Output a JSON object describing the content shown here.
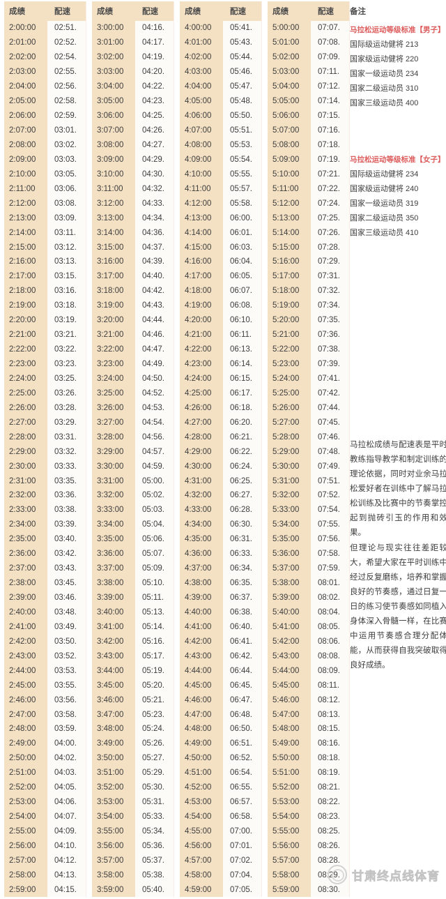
{
  "table": {
    "score_header": "成绩",
    "pace_header": "配速",
    "notes_header": "备注",
    "columns": [
      [
        [
          "2:00:00",
          "02:51."
        ],
        [
          "2:01:00",
          "02:52."
        ],
        [
          "2:02:00",
          "02:54."
        ],
        [
          "2:03:00",
          "02:55."
        ],
        [
          "2:04:00",
          "02:56."
        ],
        [
          "2:05:00",
          "02:58."
        ],
        [
          "2:06:00",
          "02:59."
        ],
        [
          "2:07:00",
          "03:01."
        ],
        [
          "2:08:00",
          "03:02."
        ],
        [
          "2:09:00",
          "03:03."
        ],
        [
          "2:10:00",
          "03:05."
        ],
        [
          "2:11:00",
          "03:06."
        ],
        [
          "2:12:00",
          "03:08."
        ],
        [
          "2:13:00",
          "03:09."
        ],
        [
          "2:14:00",
          "03:11."
        ],
        [
          "2:15:00",
          "03:12."
        ],
        [
          "2:16:00",
          "03:13."
        ],
        [
          "2:17:00",
          "03:15."
        ],
        [
          "2:18:00",
          "03:16."
        ],
        [
          "2:19:00",
          "03:18."
        ],
        [
          "2:20:00",
          "03:19."
        ],
        [
          "2:21:00",
          "03:21."
        ],
        [
          "2:22:00",
          "03:22."
        ],
        [
          "2:23:00",
          "03:23."
        ],
        [
          "2:24:00",
          "03:25."
        ],
        [
          "2:25:00",
          "03:26."
        ],
        [
          "2:26:00",
          "03:28."
        ],
        [
          "2:27:00",
          "03:29."
        ],
        [
          "2:28:00",
          "03:31."
        ],
        [
          "2:29:00",
          "03:32."
        ],
        [
          "2:30:00",
          "03:33."
        ],
        [
          "2:31:00",
          "03:35."
        ],
        [
          "2:32:00",
          "03:36."
        ],
        [
          "2:33:00",
          "03:38."
        ],
        [
          "2:34:00",
          "03:39."
        ],
        [
          "2:35:00",
          "03:40."
        ],
        [
          "2:36:00",
          "03:42."
        ],
        [
          "2:37:00",
          "03:43."
        ],
        [
          "2:38:00",
          "03:45."
        ],
        [
          "2:39:00",
          "03:46."
        ],
        [
          "2:40:00",
          "03:48."
        ],
        [
          "2:41:00",
          "03:49."
        ],
        [
          "2:42:00",
          "03:50."
        ],
        [
          "2:43:00",
          "03:52."
        ],
        [
          "2:44:00",
          "03:53."
        ],
        [
          "2:45:00",
          "03:55."
        ],
        [
          "2:46:00",
          "03:56."
        ],
        [
          "2:47:00",
          "03:58."
        ],
        [
          "2:48:00",
          "03:59."
        ],
        [
          "2:49:00",
          "04:00."
        ],
        [
          "2:50:00",
          "04:02."
        ],
        [
          "2:51:00",
          "04:03."
        ],
        [
          "2:52:00",
          "04:05."
        ],
        [
          "2:53:00",
          "04:06."
        ],
        [
          "2:54:00",
          "04:07."
        ],
        [
          "2:55:00",
          "04:09."
        ],
        [
          "2:56:00",
          "04:10."
        ],
        [
          "2:57:00",
          "04:12."
        ],
        [
          "2:58:00",
          "04:13."
        ],
        [
          "2:59:00",
          "04:15."
        ]
      ],
      [
        [
          "3:00:00",
          "04:16."
        ],
        [
          "3:01:00",
          "04:17."
        ],
        [
          "3:02:00",
          "04:19."
        ],
        [
          "3:03:00",
          "04:20."
        ],
        [
          "3:04:00",
          "04:22."
        ],
        [
          "3:05:00",
          "04:23."
        ],
        [
          "3:06:00",
          "04:25."
        ],
        [
          "3:07:00",
          "04:26."
        ],
        [
          "3:08:00",
          "04:27."
        ],
        [
          "3:09:00",
          "04:29."
        ],
        [
          "3:10:00",
          "04:30."
        ],
        [
          "3:11:00",
          "04:32."
        ],
        [
          "3:12:00",
          "04:33."
        ],
        [
          "3:13:00",
          "04:34."
        ],
        [
          "3:14:00",
          "04:36."
        ],
        [
          "3:15:00",
          "04:37."
        ],
        [
          "3:16:00",
          "04:39."
        ],
        [
          "3:17:00",
          "04:40."
        ],
        [
          "3:18:00",
          "04:42."
        ],
        [
          "3:19:00",
          "04:43."
        ],
        [
          "3:20:00",
          "04:44."
        ],
        [
          "3:21:00",
          "04:46."
        ],
        [
          "3:22:00",
          "04:47."
        ],
        [
          "3:23:00",
          "04:49."
        ],
        [
          "3:24:00",
          "04:50."
        ],
        [
          "3:25:00",
          "04:52."
        ],
        [
          "3:26:00",
          "04:53."
        ],
        [
          "3:27:00",
          "04:54."
        ],
        [
          "3:28:00",
          "04:56."
        ],
        [
          "3:29:00",
          "04:57."
        ],
        [
          "3:30:00",
          "04:59."
        ],
        [
          "3:31:00",
          "05:00."
        ],
        [
          "3:32:00",
          "05:02."
        ],
        [
          "3:33:00",
          "05:03."
        ],
        [
          "3:34:00",
          "05:04."
        ],
        [
          "3:35:00",
          "05:06."
        ],
        [
          "3:36:00",
          "05:07."
        ],
        [
          "3:37:00",
          "05:09."
        ],
        [
          "3:38:00",
          "05:10."
        ],
        [
          "3:39:00",
          "05:11."
        ],
        [
          "3:40:00",
          "05:13."
        ],
        [
          "3:41:00",
          "05:14."
        ],
        [
          "3:42:00",
          "05:16."
        ],
        [
          "3:43:00",
          "05:17."
        ],
        [
          "3:44:00",
          "05:19."
        ],
        [
          "3:45:00",
          "05:20."
        ],
        [
          "3:46:00",
          "05:21."
        ],
        [
          "3:47:00",
          "05:23."
        ],
        [
          "3:48:00",
          "05:24."
        ],
        [
          "3:49:00",
          "05:26."
        ],
        [
          "3:50:00",
          "05:27."
        ],
        [
          "3:51:00",
          "05:29."
        ],
        [
          "3:52:00",
          "05:30."
        ],
        [
          "3:53:00",
          "05:31."
        ],
        [
          "3:54:00",
          "05:33."
        ],
        [
          "3:55:00",
          "05:34."
        ],
        [
          "3:56:00",
          "05:36."
        ],
        [
          "3:57:00",
          "05:37."
        ],
        [
          "3:58:00",
          "05:38."
        ],
        [
          "3:59:00",
          "05:40."
        ]
      ],
      [
        [
          "4:00:00",
          "05:41."
        ],
        [
          "4:01:00",
          "05:43."
        ],
        [
          "4:02:00",
          "05:44."
        ],
        [
          "4:03:00",
          "05:46."
        ],
        [
          "4:04:00",
          "05:47."
        ],
        [
          "4:05:00",
          "05:48."
        ],
        [
          "4:06:00",
          "05:50."
        ],
        [
          "4:07:00",
          "05:51."
        ],
        [
          "4:08:00",
          "05:53."
        ],
        [
          "4:09:00",
          "05:54."
        ],
        [
          "4:10:00",
          "05:55."
        ],
        [
          "4:11:00",
          "05:57."
        ],
        [
          "4:12:00",
          "05:58."
        ],
        [
          "4:13:00",
          "06:00."
        ],
        [
          "4:14:00",
          "06:01."
        ],
        [
          "4:15:00",
          "06:03."
        ],
        [
          "4:16:00",
          "06:04."
        ],
        [
          "4:17:00",
          "06:05."
        ],
        [
          "4:18:00",
          "06:07."
        ],
        [
          "4:19:00",
          "06:08."
        ],
        [
          "4:20:00",
          "06:10."
        ],
        [
          "4:21:00",
          "06:11."
        ],
        [
          "4:22:00",
          "06:13."
        ],
        [
          "4:23:00",
          "06:14."
        ],
        [
          "4:24:00",
          "06:15."
        ],
        [
          "4:25:00",
          "06:17."
        ],
        [
          "4:26:00",
          "06:18."
        ],
        [
          "4:27:00",
          "06:20."
        ],
        [
          "4:28:00",
          "06:21."
        ],
        [
          "4:29:00",
          "06:22."
        ],
        [
          "4:30:00",
          "06:24."
        ],
        [
          "4:31:00",
          "06:25."
        ],
        [
          "4:32:00",
          "06:27."
        ],
        [
          "4:33:00",
          "06:28."
        ],
        [
          "4:34:00",
          "06:30."
        ],
        [
          "4:35:00",
          "06:31."
        ],
        [
          "4:36:00",
          "06:33."
        ],
        [
          "4:37:00",
          "06:34."
        ],
        [
          "4:38:00",
          "06:35."
        ],
        [
          "4:39:00",
          "06:37."
        ],
        [
          "4:40:00",
          "06:38."
        ],
        [
          "4:41:00",
          "06:40."
        ],
        [
          "4:42:00",
          "06:41."
        ],
        [
          "4:43:00",
          "06:42."
        ],
        [
          "4:44:00",
          "06:44."
        ],
        [
          "4:45:00",
          "06:45."
        ],
        [
          "4:46:00",
          "06:47."
        ],
        [
          "4:47:00",
          "06:48."
        ],
        [
          "4:48:00",
          "06:50."
        ],
        [
          "4:49:00",
          "06:51."
        ],
        [
          "4:50:00",
          "06:52."
        ],
        [
          "4:51:00",
          "06:54."
        ],
        [
          "4:52:00",
          "06:55."
        ],
        [
          "4:53:00",
          "06:57."
        ],
        [
          "4:54:00",
          "06:58."
        ],
        [
          "4:55:00",
          "07:00."
        ],
        [
          "4:56:00",
          "07:01."
        ],
        [
          "4:57:00",
          "07:02."
        ],
        [
          "4:58:00",
          "07:04."
        ],
        [
          "4:59:00",
          "07:05."
        ]
      ],
      [
        [
          "5:00:00",
          "07:07."
        ],
        [
          "5:01:00",
          "07:08."
        ],
        [
          "5:02:00",
          "07:09."
        ],
        [
          "5:03:00",
          "07:11."
        ],
        [
          "5:04:00",
          "07:12."
        ],
        [
          "5:05:00",
          "07:14."
        ],
        [
          "5:06:00",
          "07:15."
        ],
        [
          "5:07:00",
          "07:16."
        ],
        [
          "5:08:00",
          "07:18."
        ],
        [
          "5:09:00",
          "07:19."
        ],
        [
          "5:10:00",
          "07:21."
        ],
        [
          "5:11:00",
          "07:22."
        ],
        [
          "5:12:00",
          "07:24."
        ],
        [
          "5:13:00",
          "07:25."
        ],
        [
          "5:14:00",
          "07:26."
        ],
        [
          "5:15:00",
          "07:28."
        ],
        [
          "5:16:00",
          "07:29."
        ],
        [
          "5:17:00",
          "07:31."
        ],
        [
          "5:18:00",
          "07:32."
        ],
        [
          "5:19:00",
          "07:34."
        ],
        [
          "5:20:00",
          "07:35."
        ],
        [
          "5:21:00",
          "07:36."
        ],
        [
          "5:22:00",
          "07:38."
        ],
        [
          "5:23:00",
          "07:39."
        ],
        [
          "5:24:00",
          "07:41."
        ],
        [
          "5:25:00",
          "07:42."
        ],
        [
          "5:26:00",
          "07:44."
        ],
        [
          "5:27:00",
          "07:45."
        ],
        [
          "5:28:00",
          "07:46."
        ],
        [
          "5:29:00",
          "07:48."
        ],
        [
          "5:30:00",
          "07:49."
        ],
        [
          "5:31:00",
          "07:51."
        ],
        [
          "5:32:00",
          "07:52."
        ],
        [
          "5:33:00",
          "07:54."
        ],
        [
          "5:34:00",
          "07:55."
        ],
        [
          "5:35:00",
          "07:56."
        ],
        [
          "5:36:00",
          "07:58."
        ],
        [
          "5:37:00",
          "07:59."
        ],
        [
          "5:38:00",
          "08:01."
        ],
        [
          "5:39:00",
          "08:02."
        ],
        [
          "5:40:00",
          "08:04."
        ],
        [
          "5:41:00",
          "08:05."
        ],
        [
          "5:42:00",
          "08:06."
        ],
        [
          "5:43:00",
          "08:08."
        ],
        [
          "5:44:00",
          "08:09."
        ],
        [
          "5:45:00",
          "08:11."
        ],
        [
          "5:46:00",
          "08:12."
        ],
        [
          "5:47:00",
          "08:13."
        ],
        [
          "5:48:00",
          "08:15."
        ],
        [
          "5:49:00",
          "08:16."
        ],
        [
          "5:50:00",
          "08:18."
        ],
        [
          "5:51:00",
          "08:19."
        ],
        [
          "5:52:00",
          "08:21."
        ],
        [
          "5:53:00",
          "08:22."
        ],
        [
          "5:54:00",
          "08:23."
        ],
        [
          "5:55:00",
          "08:25."
        ],
        [
          "5:56:00",
          "08:26."
        ],
        [
          "5:57:00",
          "08:28."
        ],
        [
          "5:58:00",
          "08:29."
        ],
        [
          "5:59:00",
          "08:30."
        ]
      ]
    ]
  },
  "notes": {
    "men": {
      "title": "马拉松运动等级标准【男子】",
      "items": [
        "国际级运动健将 213",
        "国家级运动健将 220",
        "国家一级运动员 234",
        "国家二级运动员 310",
        "国家三级运动员 400"
      ]
    },
    "women": {
      "title": "马拉松运动等级标准【女子】",
      "items": [
        "国际级运动健将 234",
        "国家级运动健将 240",
        "国家一级运动员 319",
        "国家二级运动员 350",
        "国家三级运动员 410"
      ]
    },
    "paragraphs": [
      "马拉松成绩与配速表是平时教练指导教学和制定训练的理论依据，同时对业余马拉松爱好者在训练中了解马拉松训练及比赛中的节奏掌控起到抛砖引玉的作用和效果。",
      "但理论与现实往往差距较大，希望大家在平时训练中经过反复磨练，培养和掌握良好的节奏感，通过日复一日的练习使节奏感如同植入身体深入骨髓一样，在比赛中运用节奏感合理分配体能，从而获得自我突破取得良好成绩。"
    ],
    "watermark": "甘肃终点线体育"
  },
  "colors": {
    "beige": "#f4e1c4",
    "pace_bg": "#fdfbf7",
    "text": "#3e3e3e",
    "accent_red": "#dd5c5c",
    "watermark_gray": "#c3c3c3"
  }
}
